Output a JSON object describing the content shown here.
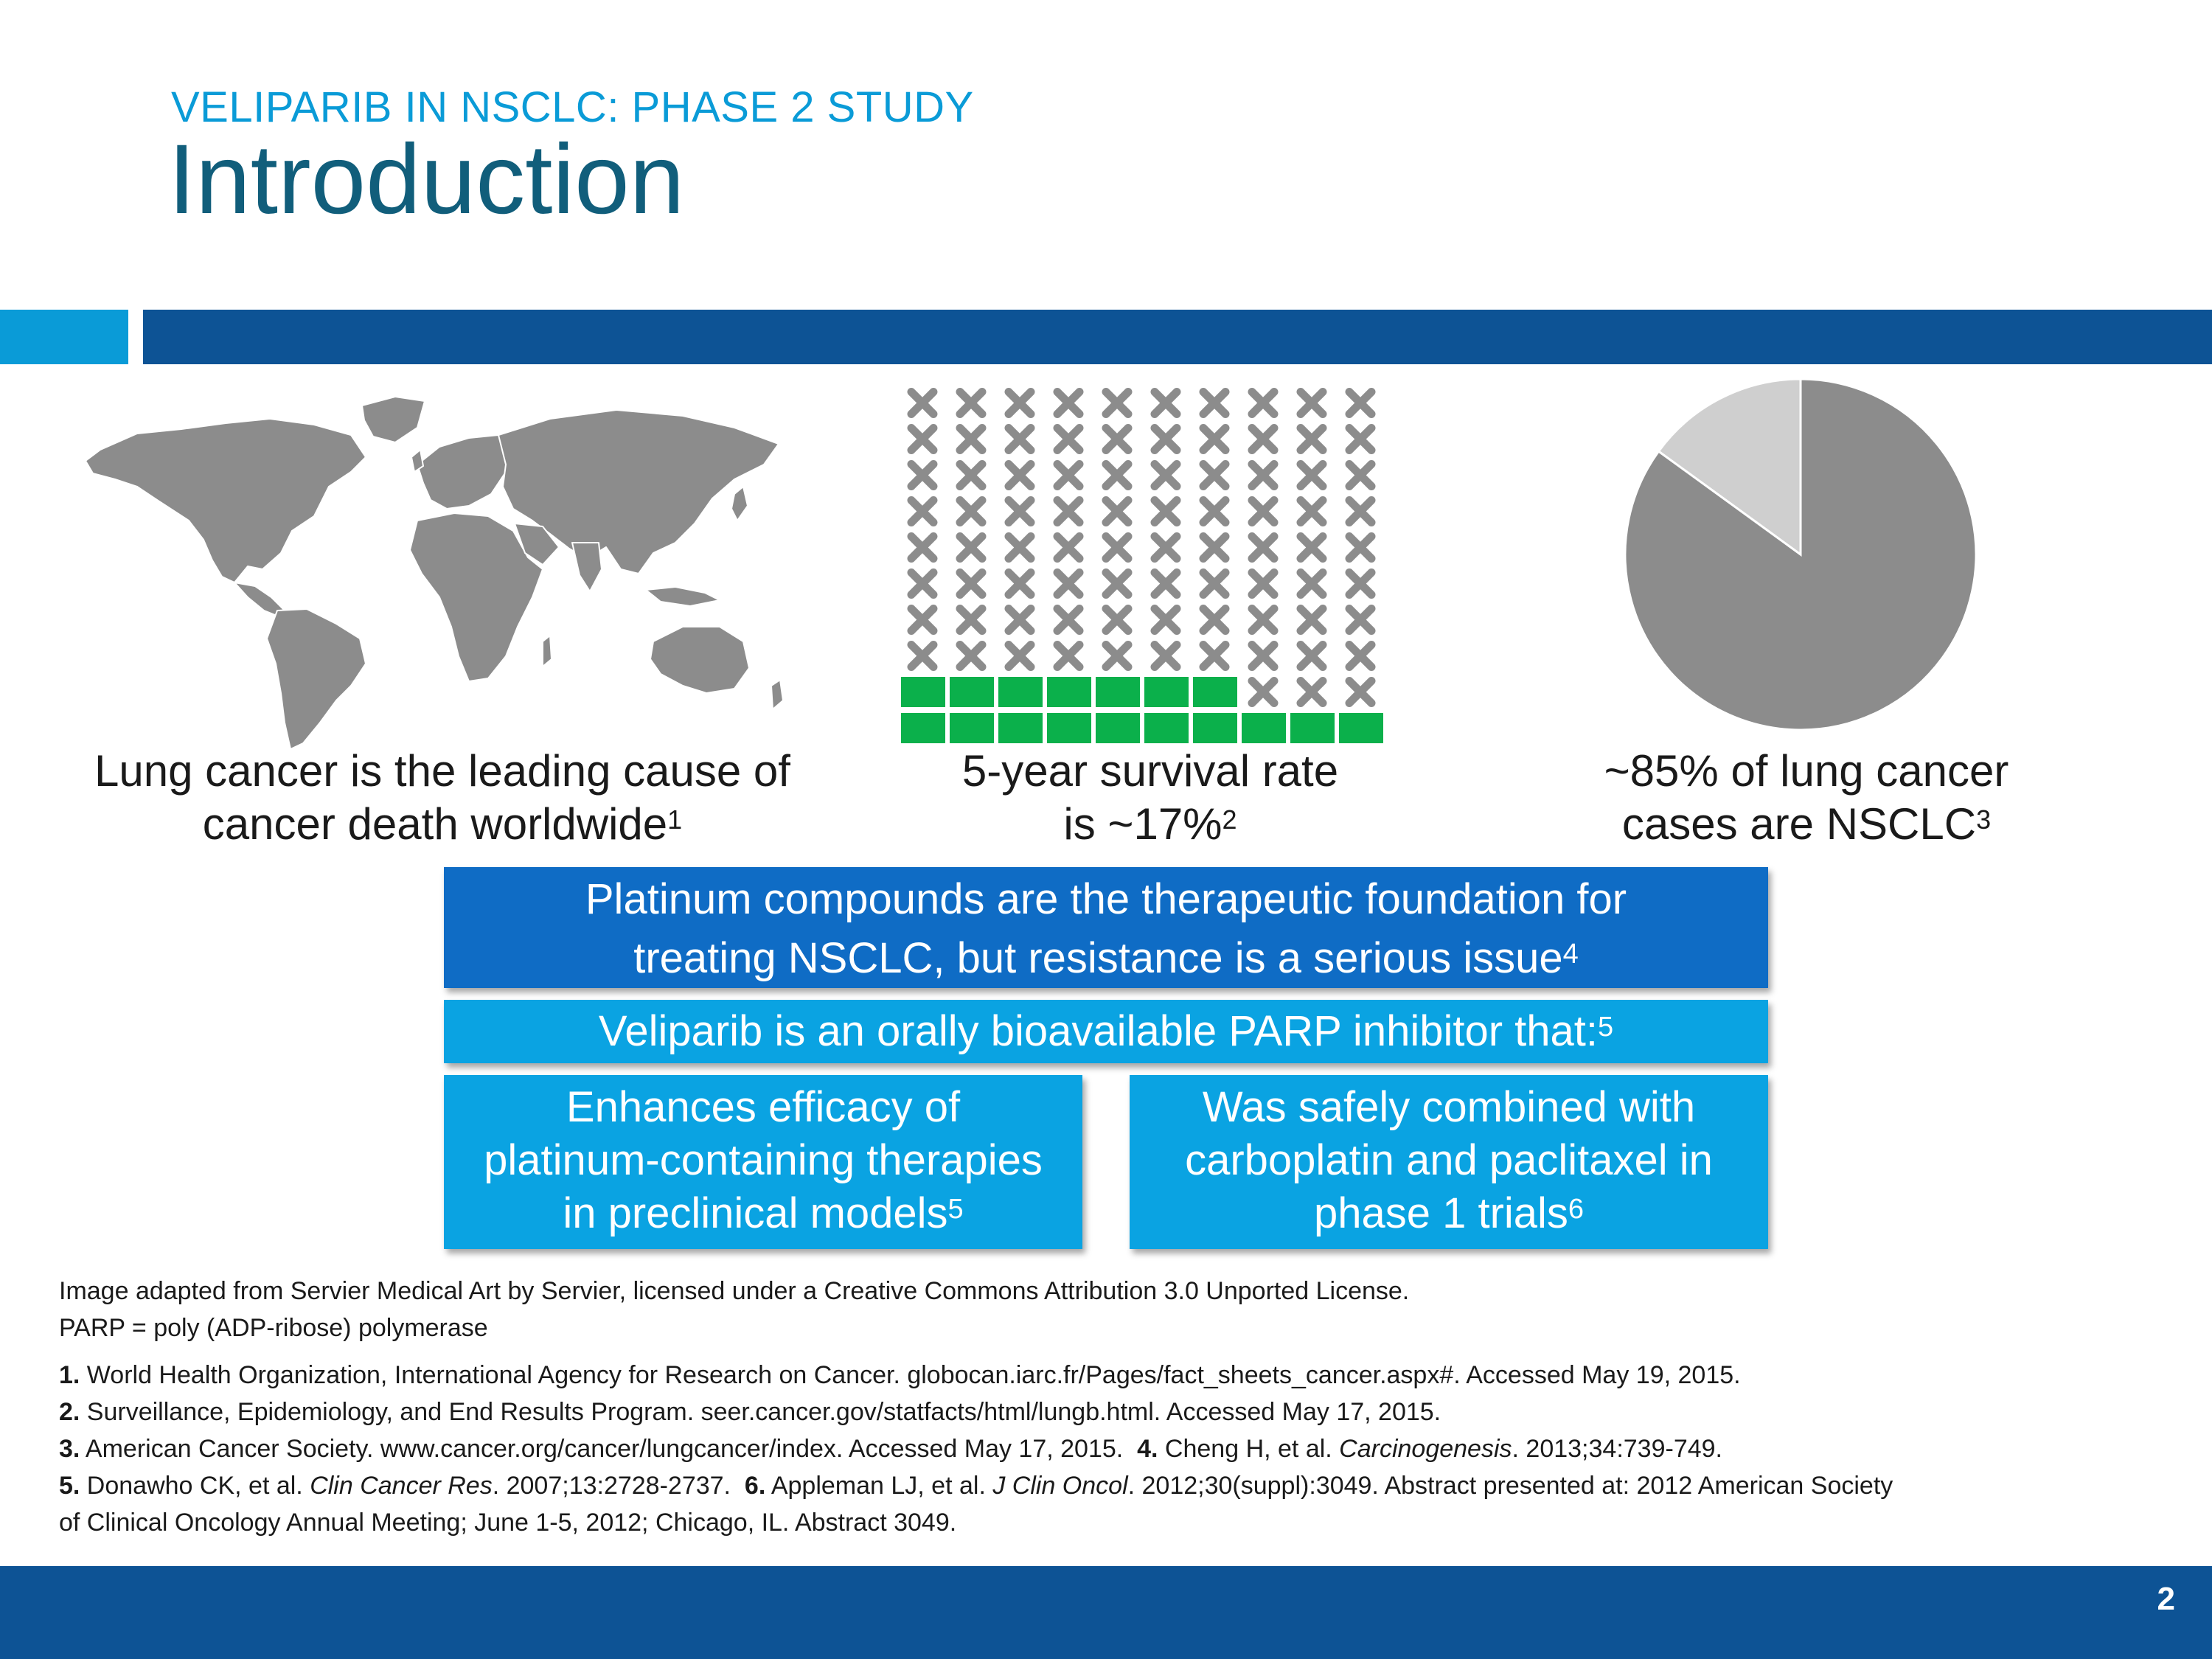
{
  "header": {
    "subtitle": "VELIPARIB IN NSCLC: PHASE 2 STUDY",
    "title": "Introduction"
  },
  "stats": [
    {
      "line1": "Lung cancer is the leading cause of",
      "line2": "cancer death worldwide",
      "ref": "1"
    },
    {
      "line1": "5-year survival rate",
      "line2": "is ~17%",
      "ref": "2"
    },
    {
      "line1": "~85% of lung cancer",
      "line2": "cases are NSCLC",
      "ref": "3"
    }
  ],
  "survival_pictogram": {
    "total": 100,
    "survivors": 17,
    "survivor_color": "#0bb04b",
    "nonsurvivor_color": "#8c8c8c"
  },
  "nsclc_pie": {
    "nsclc_percent": 85,
    "nsclc_color": "#8c8c8c",
    "other_color": "#cfcfcf"
  },
  "boxes": {
    "platinum": {
      "line1": "Platinum compounds are the therapeutic foundation for",
      "line2": "treating NSCLC, but resistance is a serious issue",
      "ref": "4"
    },
    "veliparib": {
      "text": "Veliparib is an orally bioavailable PARP inhibitor that:",
      "ref": "5"
    },
    "enhances": {
      "line1": "Enhances efficacy of",
      "line2": "platinum-containing therapies",
      "line3": "in preclinical models",
      "ref": "5"
    },
    "combined": {
      "line1": "Was safely combined with",
      "line2": "carboplatin and paclitaxel in",
      "line3": "phase 1 trials",
      "ref": "6"
    }
  },
  "notes": {
    "image_credit": "Image adapted from Servier Medical Art by Servier, licensed under a Creative Commons Attribution 3.0 Unported License.",
    "abbreviation": "PARP = poly (ADP-ribose) polymerase"
  },
  "references": {
    "r1_num": "1.",
    "r1_text": " World Health Organization, International Agency for Research on Cancer. globocan.iarc.fr/Pages/fact_sheets_cancer.aspx#. Accessed May 19, 2015.",
    "r2_num": "2.",
    "r2_text": " Surveillance, Epidemiology, and End Results Program. seer.cancer.gov/statfacts/html/lungb.html. Accessed May 17, 2015.",
    "r3_num": "3.",
    "r3_text": " American Cancer Society. www.cancer.org/cancer/lungcancer/index. Accessed May 17, 2015.  ",
    "r4_num": "4.",
    "r4_pre": " Cheng H, et al. ",
    "r4_journal": "Carcinogenesis",
    "r4_post": ". 2013;34:739-749.",
    "r5_num": "5.",
    "r5_pre": " Donawho CK, et al. ",
    "r5_journal": "Clin Cancer Res",
    "r5_post": ". 2007;13:2728-2737.  ",
    "r6_num": "6.",
    "r6_pre": " Appleman LJ, et al. ",
    "r6_journal": "J Clin Oncol",
    "r6_post": ". 2012;30(suppl):3049. Abstract presented at: 2012 American Society",
    "r6_line2": "of Clinical Oncology Annual Meeting; June 1-5, 2012; Chicago, IL. Abstract 3049."
  },
  "footer": {
    "page_number": "2"
  }
}
